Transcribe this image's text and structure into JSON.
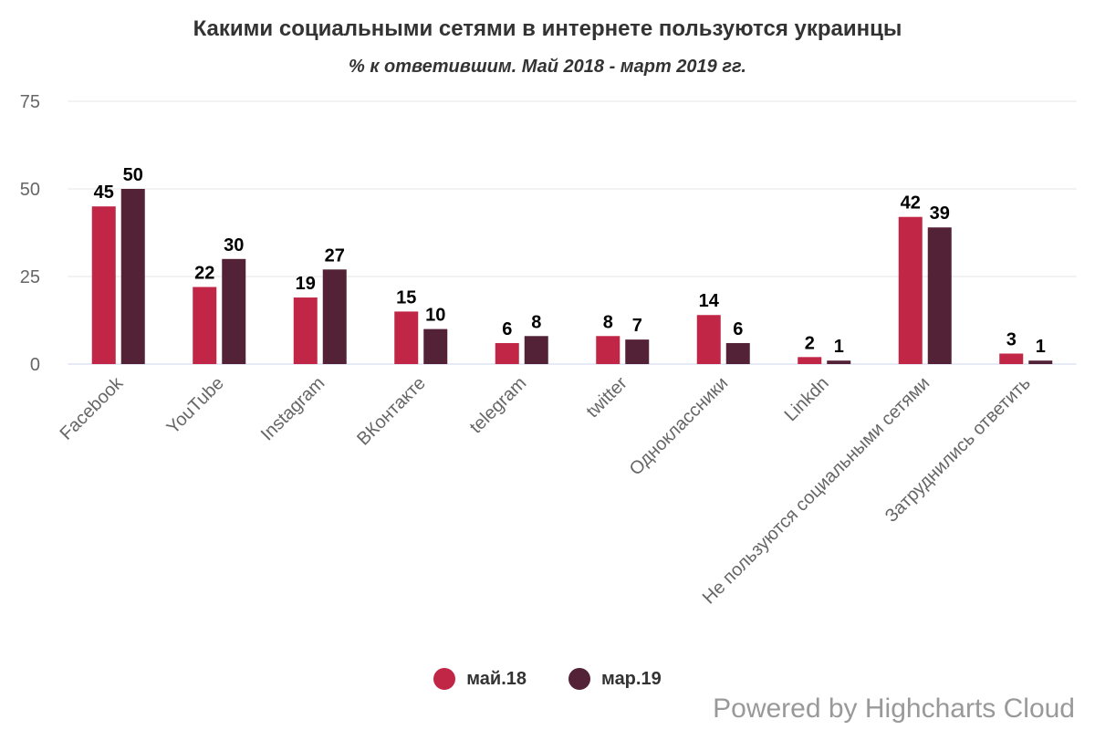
{
  "chart_data": {
    "type": "bar",
    "title": "Какими социальными сетями в интернете пользуются украинцы",
    "subtitle": "% к ответившим. Май 2018 - март 2019 гг.",
    "categories": [
      "Facebook",
      "YouTube",
      "Instagram",
      "ВКонтакте",
      "telegram",
      "twitter",
      "Одноклассники",
      "Linkdn",
      "Не пользуются социальными сетями",
      "Затруднились ответить"
    ],
    "series": [
      {
        "name": "май.18",
        "color": "#c12646",
        "values": [
          45,
          22,
          19,
          15,
          6,
          8,
          14,
          2,
          42,
          3
        ]
      },
      {
        "name": "мар.19",
        "color": "#532236",
        "values": [
          50,
          30,
          27,
          10,
          8,
          7,
          6,
          1,
          39,
          1
        ]
      }
    ],
    "ylim": [
      0,
      75
    ],
    "yticks": [
      0,
      25,
      50,
      75
    ],
    "grid": true,
    "legend_position": "bottom",
    "data_labels": true
  },
  "credits": "Powered by Highcharts Cloud"
}
